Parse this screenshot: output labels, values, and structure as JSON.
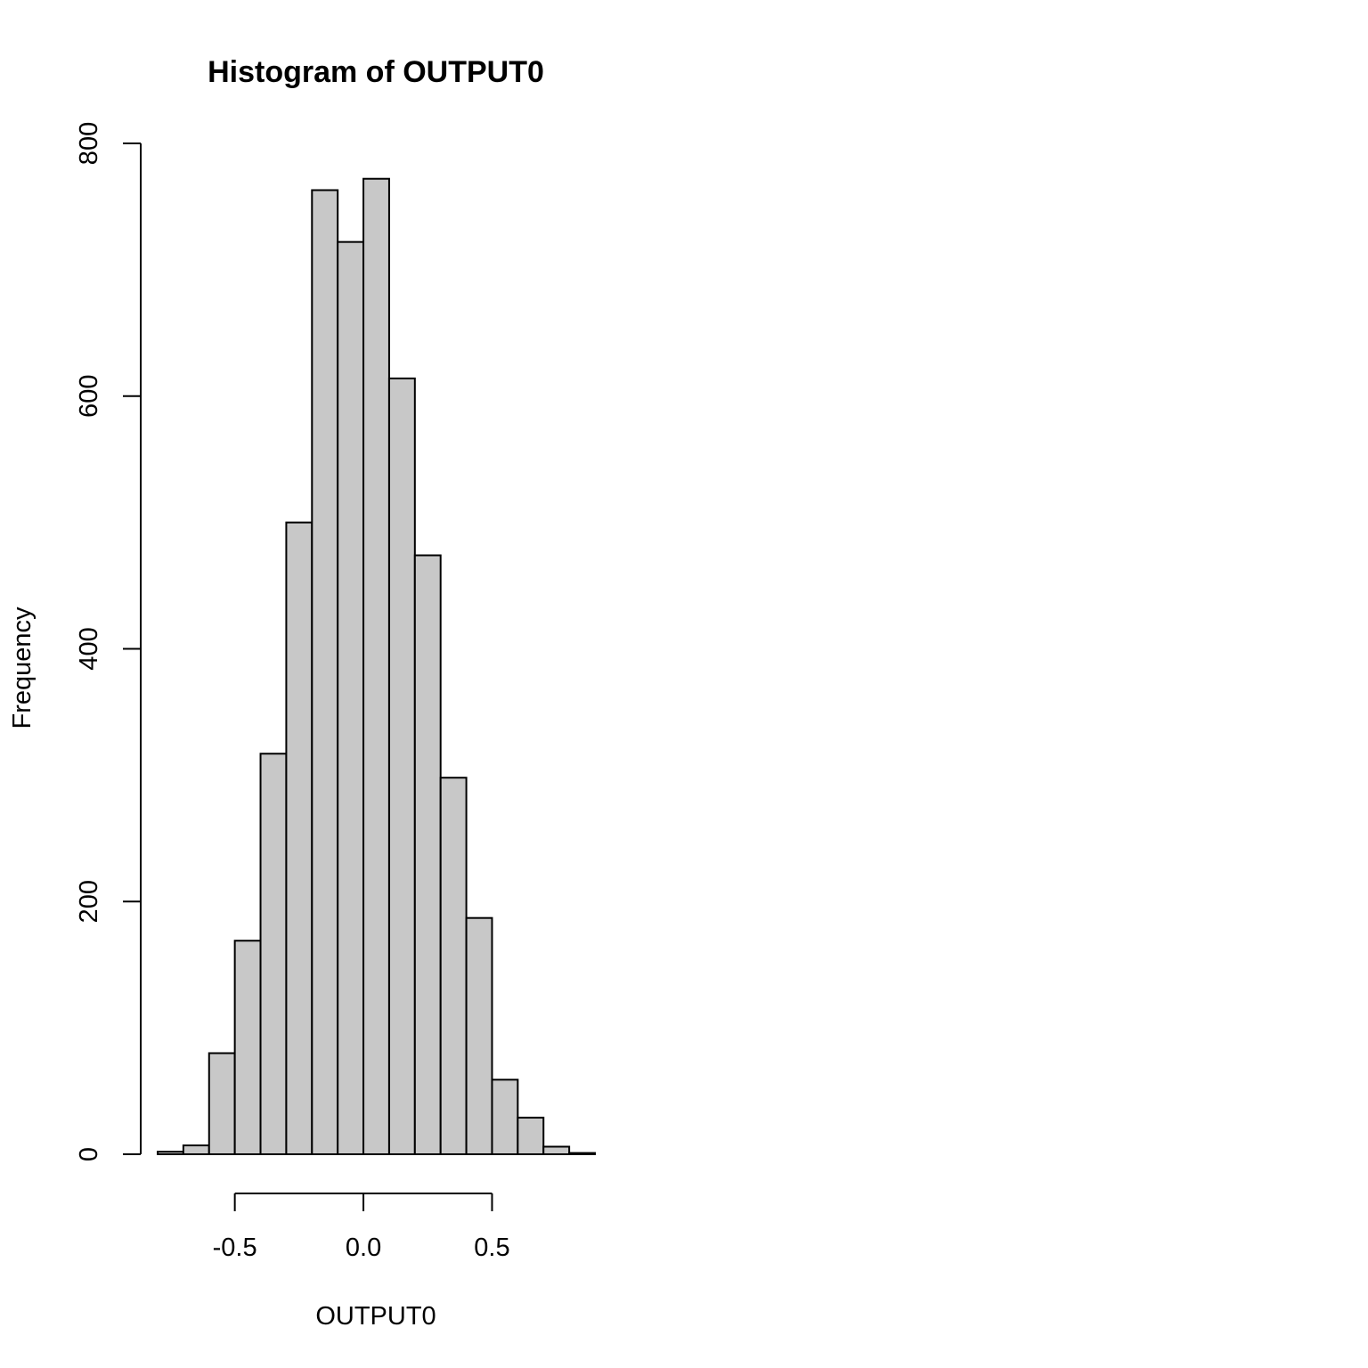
{
  "chart_data": {
    "type": "bar",
    "title": "Histogram of OUTPUT0",
    "xlabel": "OUTPUT0",
    "ylabel": "Frequency",
    "bar_color": "#c8c8c8",
    "bins": [
      {
        "x0": -0.8,
        "x1": -0.7,
        "count": 2
      },
      {
        "x0": -0.7,
        "x1": -0.6,
        "count": 7
      },
      {
        "x0": -0.6,
        "x1": -0.5,
        "count": 80
      },
      {
        "x0": -0.5,
        "x1": -0.4,
        "count": 169
      },
      {
        "x0": -0.4,
        "x1": -0.3,
        "count": 317
      },
      {
        "x0": -0.3,
        "x1": -0.2,
        "count": 500
      },
      {
        "x0": -0.2,
        "x1": -0.1,
        "count": 763
      },
      {
        "x0": -0.1,
        "x1": 0.0,
        "count": 722
      },
      {
        "x0": 0.0,
        "x1": 0.1,
        "count": 772
      },
      {
        "x0": 0.1,
        "x1": 0.2,
        "count": 614
      },
      {
        "x0": 0.2,
        "x1": 0.3,
        "count": 474
      },
      {
        "x0": 0.3,
        "x1": 0.4,
        "count": 298
      },
      {
        "x0": 0.4,
        "x1": 0.5,
        "count": 187
      },
      {
        "x0": 0.5,
        "x1": 0.6,
        "count": 59
      },
      {
        "x0": 0.6,
        "x1": 0.7,
        "count": 29
      },
      {
        "x0": 0.7,
        "x1": 0.8,
        "count": 6
      },
      {
        "x0": 0.8,
        "x1": 0.9,
        "count": 1
      }
    ],
    "xlim": [
      -0.8,
      0.9
    ],
    "ylim": [
      0,
      800
    ],
    "x_ticks": [
      {
        "value": -0.5,
        "label": "-0.5"
      },
      {
        "value": 0.0,
        "label": "0.0"
      },
      {
        "value": 0.5,
        "label": "0.5"
      }
    ],
    "y_ticks": [
      {
        "value": 0,
        "label": "0"
      },
      {
        "value": 200,
        "label": "200"
      },
      {
        "value": 400,
        "label": "400"
      },
      {
        "value": 600,
        "label": "600"
      },
      {
        "value": 800,
        "label": "800"
      }
    ],
    "grid": false
  }
}
